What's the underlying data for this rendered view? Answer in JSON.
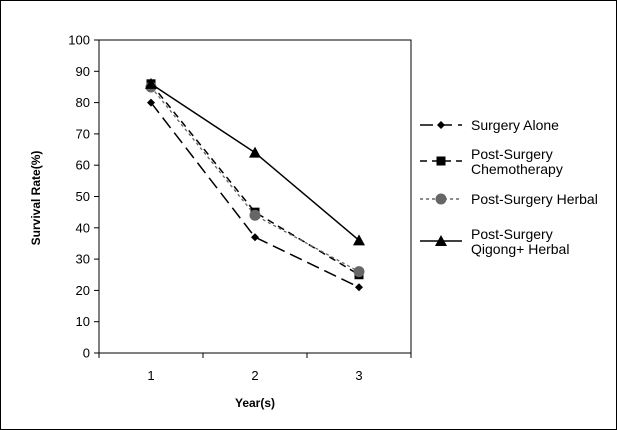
{
  "chart_data": {
    "type": "line",
    "title": "",
    "xlabel": "Year(s)",
    "ylabel": "Survival Rate(%)",
    "categories": [
      "1",
      "2",
      "3"
    ],
    "ylim": [
      0,
      100
    ],
    "yticks": [
      "0",
      "10",
      "20",
      "30",
      "40",
      "50",
      "60",
      "70",
      "80",
      "90",
      "100"
    ],
    "grid": false,
    "legend_position": "right",
    "series": [
      {
        "name": "Surgery Alone",
        "values": [
          80,
          37,
          21
        ],
        "marker": "diamond",
        "dash": "long-dash",
        "color": "#000000"
      },
      {
        "name": "Post-Surgery\nChemotherapy",
        "values": [
          86,
          45,
          25
        ],
        "marker": "square",
        "dash": "dash",
        "color": "#000000"
      },
      {
        "name": "Post-Surgery Herbal",
        "values": [
          85,
          44,
          26
        ],
        "marker": "circle",
        "dash": "dot",
        "color": "#666666"
      },
      {
        "name": "Post-Surgery\nQigong+ Herbal",
        "values": [
          86,
          64,
          36
        ],
        "marker": "triangle",
        "dash": "solid",
        "color": "#000000"
      }
    ]
  }
}
